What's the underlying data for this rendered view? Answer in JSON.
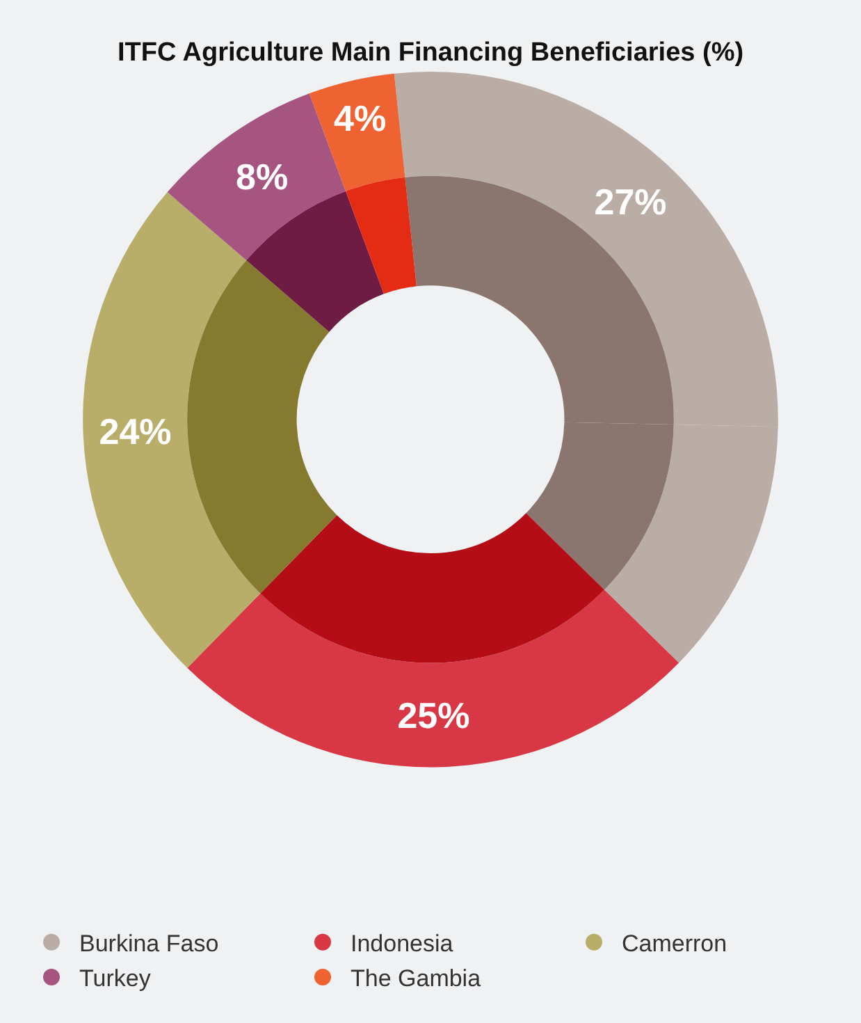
{
  "chart_data": {
    "type": "donut",
    "title": "ITFC Agriculture Main Financing Beneficiaries (%)",
    "categories": [
      "Burkina Faso",
      null,
      "Indonesia",
      "Camerron",
      "Turkey",
      "The Gambia"
    ],
    "series": [
      {
        "values": [
          27,
          12,
          25,
          24,
          8,
          4
        ],
        "colors": [
          "#b9ada6",
          "#b9ada6",
          "#d83745",
          "#b8ae6a",
          "#a5557f",
          "#ef6333"
        ],
        "value_labels": [
          "27%",
          null,
          "25%",
          "24%",
          "8%",
          "4%"
        ]
      },
      {
        "values": [
          27,
          12,
          25,
          24,
          8,
          4
        ],
        "colors": [
          "#8a766e",
          "#8a766e",
          "#b50d15",
          "#857a2e",
          "#6e1c44",
          "#e42b13"
        ]
      }
    ],
    "legend": "bottom"
  }
}
